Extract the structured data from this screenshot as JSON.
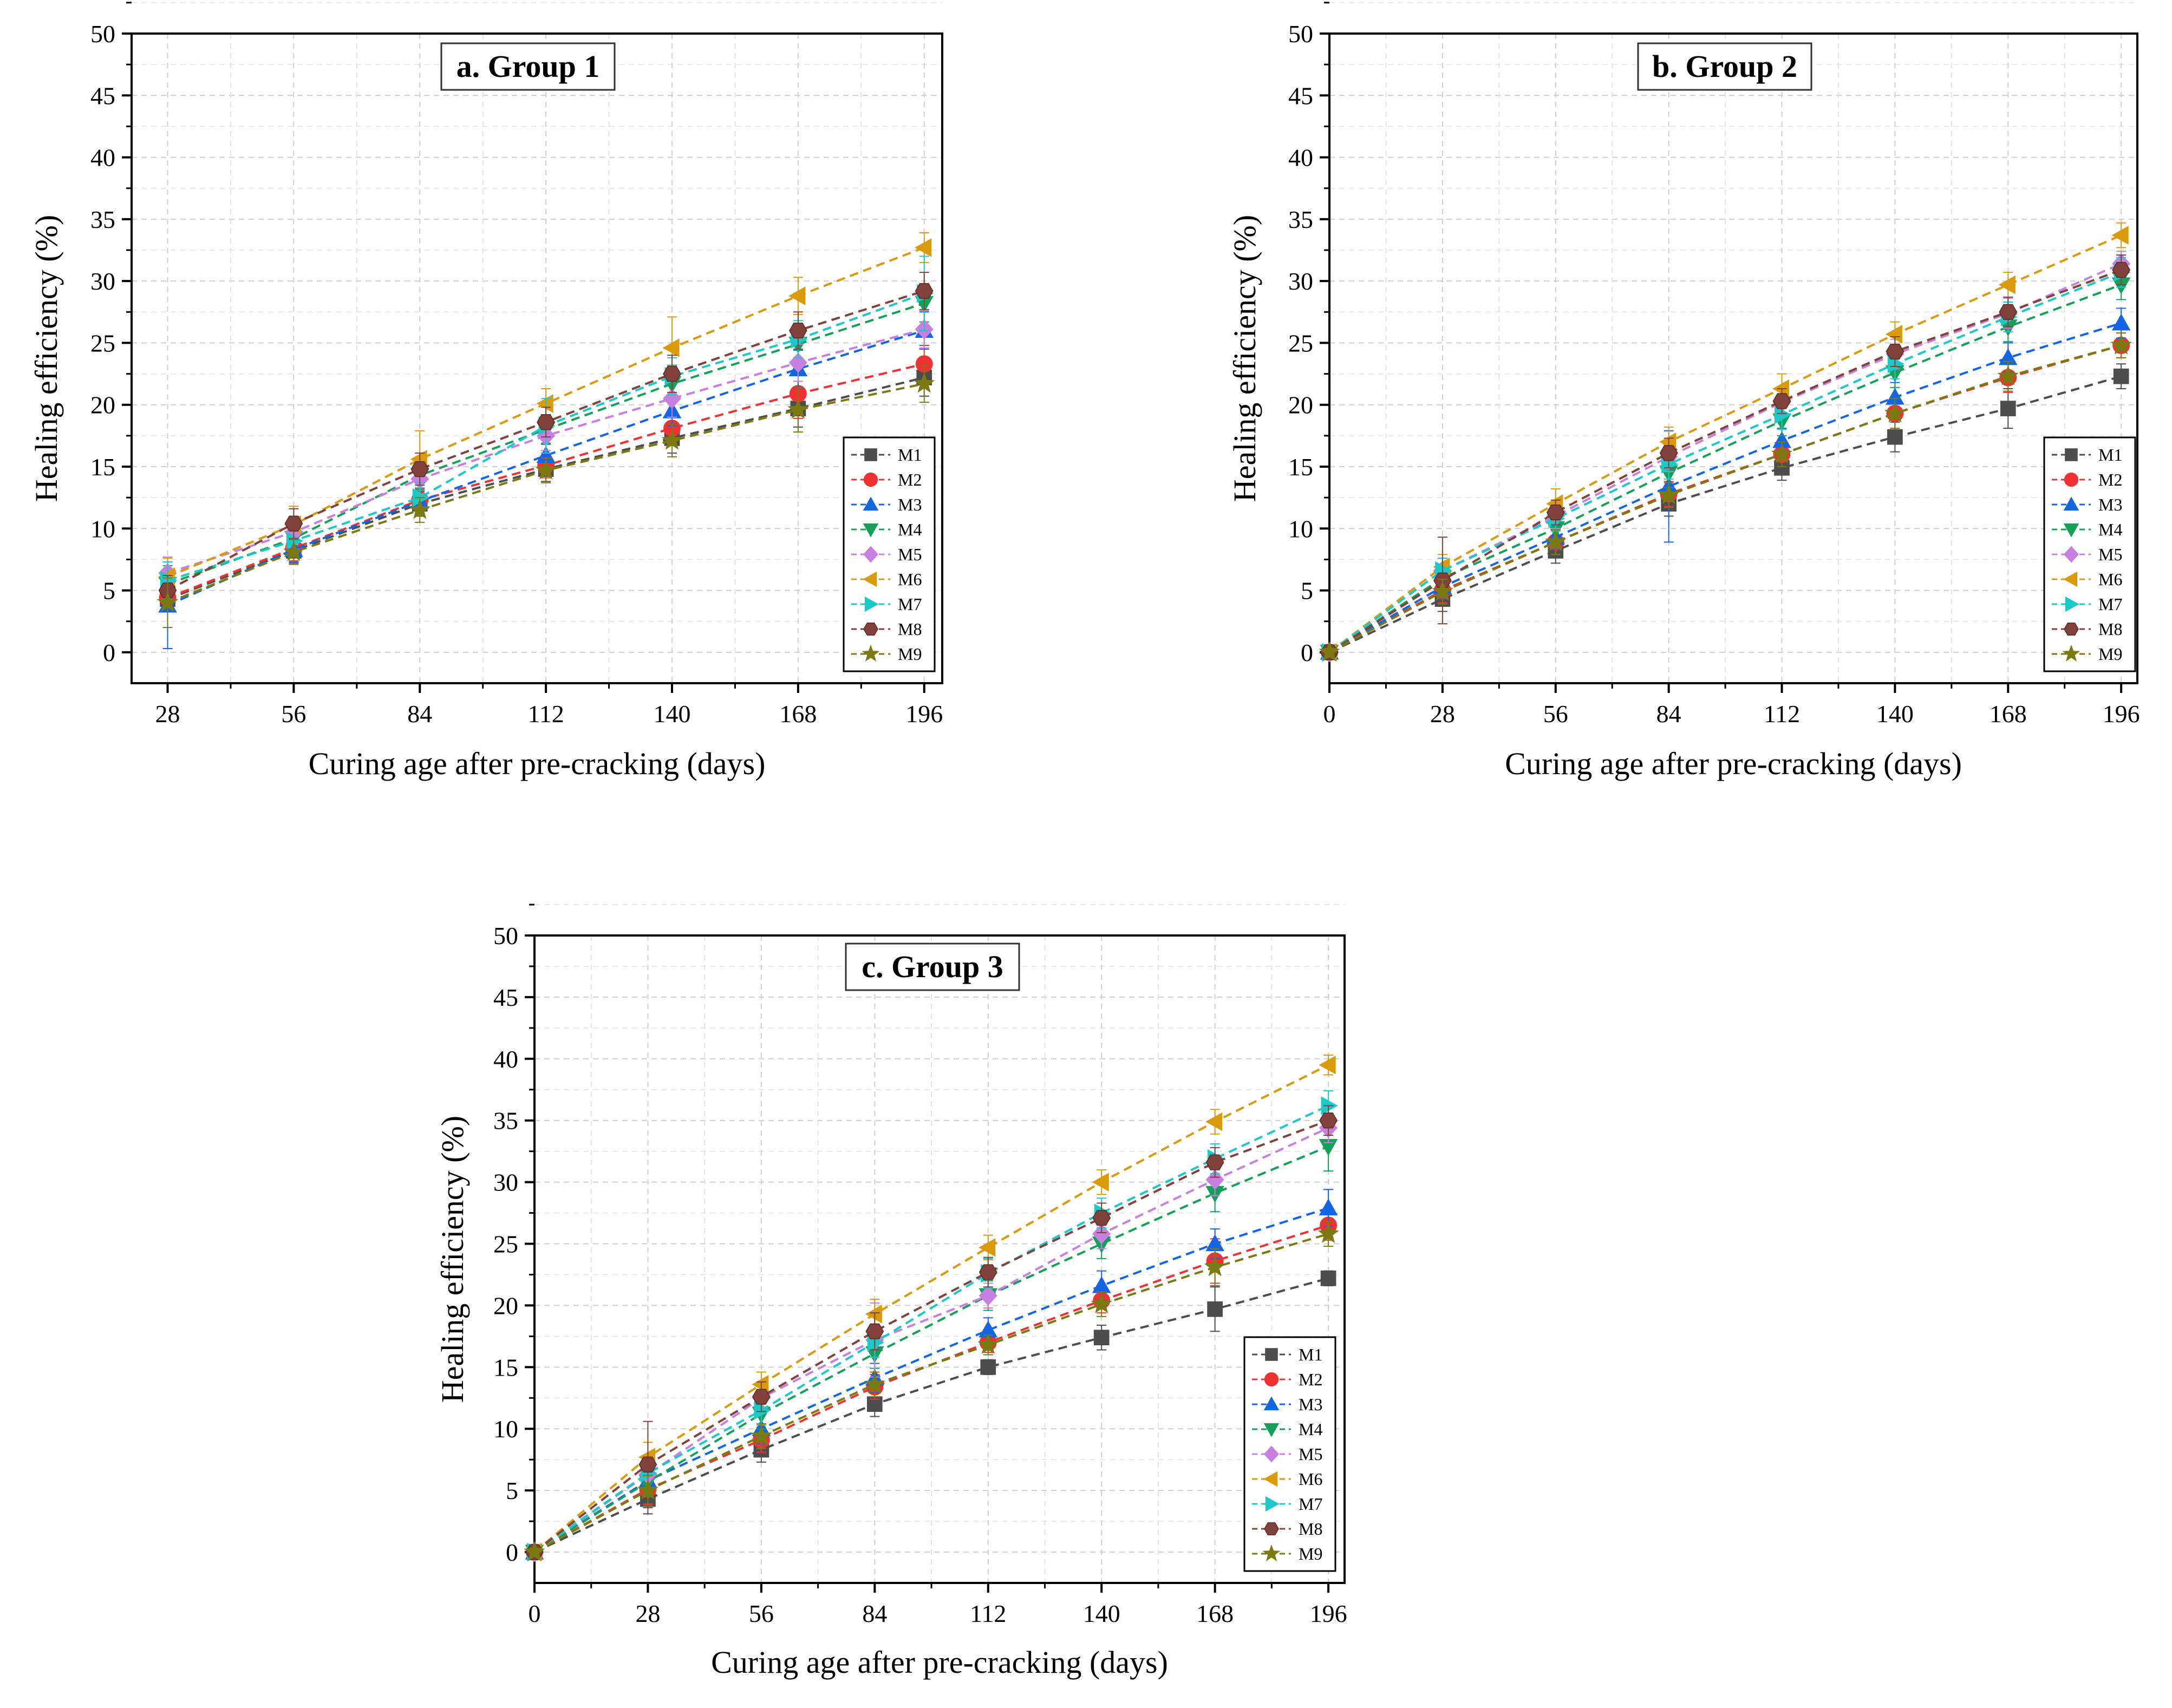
{
  "figure": {
    "ylabel": "Healing efficiency (%)",
    "xlabel": "Curing age after pre-cracking (days)"
  },
  "series_style": [
    {
      "name": "M1",
      "color": "#4d4d4d",
      "marker": "square"
    },
    {
      "name": "M2",
      "color": "#f03232",
      "marker": "circle"
    },
    {
      "name": "M3",
      "color": "#1464e6",
      "marker": "triangle-up"
    },
    {
      "name": "M4",
      "color": "#15a05a",
      "marker": "triangle-down"
    },
    {
      "name": "M5",
      "color": "#c77fe0",
      "marker": "diamond"
    },
    {
      "name": "M6",
      "color": "#d99a0b",
      "marker": "triangle-left"
    },
    {
      "name": "M7",
      "color": "#1dc8c8",
      "marker": "triangle-right"
    },
    {
      "name": "M8",
      "color": "#80423a",
      "marker": "hexagon"
    },
    {
      "name": "M9",
      "color": "#7a7a10",
      "marker": "star"
    }
  ],
  "chart_data": [
    {
      "type": "line",
      "title": "a. Group 1",
      "xlabel": "Curing age after pre-cracking (days)",
      "ylabel": "Healing efficiency (%)",
      "xlim": [
        20,
        200
      ],
      "ylim": [
        -2.5,
        50
      ],
      "xticks": [
        28,
        56,
        84,
        112,
        140,
        168,
        196
      ],
      "yticks": [
        0,
        5,
        10,
        15,
        20,
        25,
        30,
        35,
        40,
        45,
        50
      ],
      "grid": true,
      "legend": "bottom-right",
      "x": [
        28,
        56,
        84,
        112,
        140,
        168,
        196
      ],
      "series": [
        {
          "name": "M1",
          "values": [
            4.3,
            8.2,
            12.0,
            14.8,
            17.3,
            19.7,
            22.2
          ],
          "errors": [
            1.0,
            1.0,
            1.0,
            1.0,
            1.2,
            1.5,
            1.5
          ]
        },
        {
          "name": "M2",
          "values": [
            4.4,
            8.4,
            12.3,
            15.1,
            18.1,
            20.9,
            23.3
          ],
          "errors": [
            1.0,
            1.0,
            1.0,
            1.0,
            1.2,
            2.0,
            1.5
          ]
        },
        {
          "name": "M3",
          "values": [
            3.8,
            8.3,
            12.2,
            15.9,
            19.5,
            22.9,
            26.0
          ],
          "errors": [
            3.5,
            1.0,
            1.0,
            1.0,
            1.2,
            1.5,
            1.5
          ]
        },
        {
          "name": "M4",
          "values": [
            5.5,
            9.2,
            14.3,
            18.0,
            21.7,
            24.9,
            28.2
          ],
          "errors": [
            1.5,
            1.0,
            1.2,
            1.2,
            1.5,
            1.5,
            1.5
          ]
        },
        {
          "name": "M5",
          "values": [
            6.4,
            9.7,
            14.0,
            17.5,
            20.5,
            23.4,
            26.1
          ],
          "errors": [
            1.3,
            1.0,
            1.2,
            1.2,
            1.5,
            1.5,
            1.5
          ]
        },
        {
          "name": "M6",
          "values": [
            6.1,
            10.3,
            15.6,
            20.1,
            24.6,
            28.8,
            32.7
          ],
          "errors": [
            1.5,
            1.5,
            2.3,
            1.2,
            2.5,
            1.5,
            1.2
          ]
        },
        {
          "name": "M7",
          "values": [
            5.8,
            9.0,
            12.5,
            18.3,
            22.3,
            25.3,
            29.0
          ],
          "errors": [
            1.5,
            1.0,
            1.2,
            2.2,
            1.5,
            1.5,
            3.0
          ]
        },
        {
          "name": "M8",
          "values": [
            5.0,
            10.4,
            14.8,
            18.6,
            22.5,
            26.0,
            29.2
          ],
          "errors": [
            1.2,
            1.2,
            1.3,
            1.2,
            1.5,
            1.5,
            1.5
          ]
        },
        {
          "name": "M9",
          "values": [
            4.0,
            8.1,
            11.5,
            14.7,
            17.1,
            19.6,
            21.7
          ],
          "errors": [
            2.0,
            1.0,
            1.0,
            1.0,
            1.3,
            1.8,
            1.5
          ]
        }
      ]
    },
    {
      "type": "line",
      "title": "b. Group 2",
      "xlabel": "Curing age after pre-cracking (days)",
      "ylabel": "Healing efficiency (%)",
      "xlim": [
        0,
        200
      ],
      "ylim": [
        -2.5,
        50
      ],
      "xticks": [
        0,
        28,
        56,
        84,
        112,
        140,
        168,
        196
      ],
      "yticks": [
        0,
        5,
        10,
        15,
        20,
        25,
        30,
        35,
        40,
        45,
        50
      ],
      "grid": true,
      "legend": "bottom-right",
      "x": [
        0,
        28,
        56,
        84,
        112,
        140,
        168,
        196
      ],
      "series": [
        {
          "name": "M1",
          "values": [
            0,
            4.3,
            8.2,
            12.0,
            14.9,
            17.4,
            19.7,
            22.3
          ],
          "errors": [
            0.3,
            1.0,
            1.0,
            1.0,
            1.0,
            1.2,
            1.6,
            1.0
          ]
        },
        {
          "name": "M2",
          "values": [
            0,
            5.0,
            8.9,
            12.8,
            16.0,
            19.3,
            22.2,
            24.8
          ],
          "errors": [
            0.3,
            1.0,
            1.0,
            1.0,
            1.0,
            1.2,
            1.2,
            1.0
          ]
        },
        {
          "name": "M3",
          "values": [
            0,
            5.3,
            9.3,
            13.4,
            17.1,
            20.6,
            23.8,
            26.6
          ],
          "errors": [
            0.3,
            1.0,
            1.0,
            4.5,
            1.0,
            1.2,
            1.2,
            1.2
          ]
        },
        {
          "name": "M4",
          "values": [
            0,
            6.0,
            10.0,
            14.5,
            18.7,
            22.6,
            26.3,
            29.7
          ],
          "errors": [
            0.3,
            1.0,
            1.0,
            1.2,
            1.2,
            1.2,
            1.2,
            1.2
          ]
        },
        {
          "name": "M5",
          "values": [
            0,
            6.6,
            11.0,
            15.8,
            20.2,
            24.1,
            27.4,
            31.4
          ],
          "errors": [
            0.3,
            1.0,
            1.0,
            1.2,
            1.2,
            1.2,
            1.2,
            1.0
          ]
        },
        {
          "name": "M6",
          "values": [
            0,
            6.9,
            12.0,
            17.0,
            21.3,
            25.7,
            29.7,
            33.7
          ],
          "errors": [
            0.3,
            1.0,
            1.2,
            1.2,
            1.2,
            1.0,
            1.0,
            1.0
          ]
        },
        {
          "name": "M7",
          "values": [
            0,
            6.6,
            10.8,
            15.2,
            19.2,
            23.3,
            27.1,
            30.7
          ],
          "errors": [
            0.3,
            1.0,
            1.0,
            1.2,
            1.2,
            1.2,
            1.2,
            1.2
          ]
        },
        {
          "name": "M8",
          "values": [
            0,
            5.8,
            11.3,
            16.1,
            20.3,
            24.3,
            27.5,
            30.9
          ],
          "errors": [
            0.3,
            3.5,
            1.0,
            1.2,
            1.0,
            1.2,
            1.2,
            1.2
          ]
        },
        {
          "name": "M9",
          "values": [
            0,
            4.9,
            8.9,
            12.7,
            16.0,
            19.3,
            22.3,
            24.8
          ],
          "errors": [
            0.3,
            1.0,
            1.0,
            1.0,
            1.0,
            1.2,
            1.2,
            1.0
          ]
        }
      ]
    },
    {
      "type": "line",
      "title": "c. Group 3",
      "xlabel": "Curing age after pre-cracking (days)",
      "ylabel": "Healing efficiency (%)",
      "xlim": [
        0,
        200
      ],
      "ylim": [
        -2.5,
        50
      ],
      "xticks": [
        0,
        28,
        56,
        84,
        112,
        140,
        168,
        196
      ],
      "yticks": [
        0,
        5,
        10,
        15,
        20,
        25,
        30,
        35,
        40,
        45,
        50
      ],
      "grid": true,
      "legend": "bottom-right",
      "x": [
        0,
        28,
        56,
        84,
        112,
        140,
        168,
        196
      ],
      "series": [
        {
          "name": "M1",
          "values": [
            0,
            4.3,
            8.3,
            12.0,
            15.0,
            17.4,
            19.7,
            22.2
          ],
          "errors": [
            0.3,
            1.2,
            1.0,
            1.0,
            0.6,
            1.0,
            1.8,
            0.6
          ]
        },
        {
          "name": "M2",
          "values": [
            0,
            5.1,
            9.1,
            13.4,
            17.0,
            20.4,
            23.6,
            26.5
          ],
          "errors": [
            0.3,
            1.2,
            1.0,
            1.0,
            0.8,
            1.0,
            1.8,
            1.2
          ]
        },
        {
          "name": "M3",
          "values": [
            0,
            5.8,
            10.0,
            14.1,
            18.0,
            21.6,
            25.0,
            27.9
          ],
          "errors": [
            0.3,
            1.2,
            1.2,
            1.2,
            1.0,
            1.2,
            1.2,
            1.5
          ]
        },
        {
          "name": "M4",
          "values": [
            0,
            5.7,
            11.2,
            16.1,
            20.8,
            25.0,
            29.1,
            32.9
          ],
          "errors": [
            0.3,
            1.2,
            1.2,
            1.2,
            1.2,
            1.2,
            1.5,
            2.0
          ]
        },
        {
          "name": "M5",
          "values": [
            0,
            6.3,
            12.5,
            17.2,
            20.8,
            25.8,
            30.2,
            34.4
          ],
          "errors": [
            0.3,
            1.2,
            1.2,
            3.0,
            1.0,
            1.2,
            1.3,
            1.2
          ]
        },
        {
          "name": "M6",
          "values": [
            0,
            7.7,
            13.6,
            19.3,
            24.7,
            30.0,
            34.9,
            39.5
          ],
          "errors": [
            0.3,
            1.2,
            1.0,
            1.2,
            1.0,
            1.0,
            1.0,
            0.8
          ]
        },
        {
          "name": "M7",
          "values": [
            0,
            6.4,
            11.5,
            17.0,
            22.6,
            27.5,
            31.9,
            36.2
          ],
          "errors": [
            0.3,
            1.2,
            1.2,
            1.2,
            1.2,
            1.2,
            1.2,
            1.2
          ]
        },
        {
          "name": "M8",
          "values": [
            0,
            7.1,
            12.6,
            17.9,
            22.7,
            27.1,
            31.6,
            35.0
          ],
          "errors": [
            0.3,
            3.5,
            1.2,
            1.5,
            1.2,
            1.2,
            1.2,
            1.2
          ]
        },
        {
          "name": "M9",
          "values": [
            0,
            5.0,
            9.4,
            13.6,
            16.8,
            20.1,
            23.1,
            25.8
          ],
          "errors": [
            0.3,
            1.2,
            1.0,
            1.0,
            0.8,
            1.0,
            1.5,
            1.0
          ]
        }
      ]
    }
  ]
}
